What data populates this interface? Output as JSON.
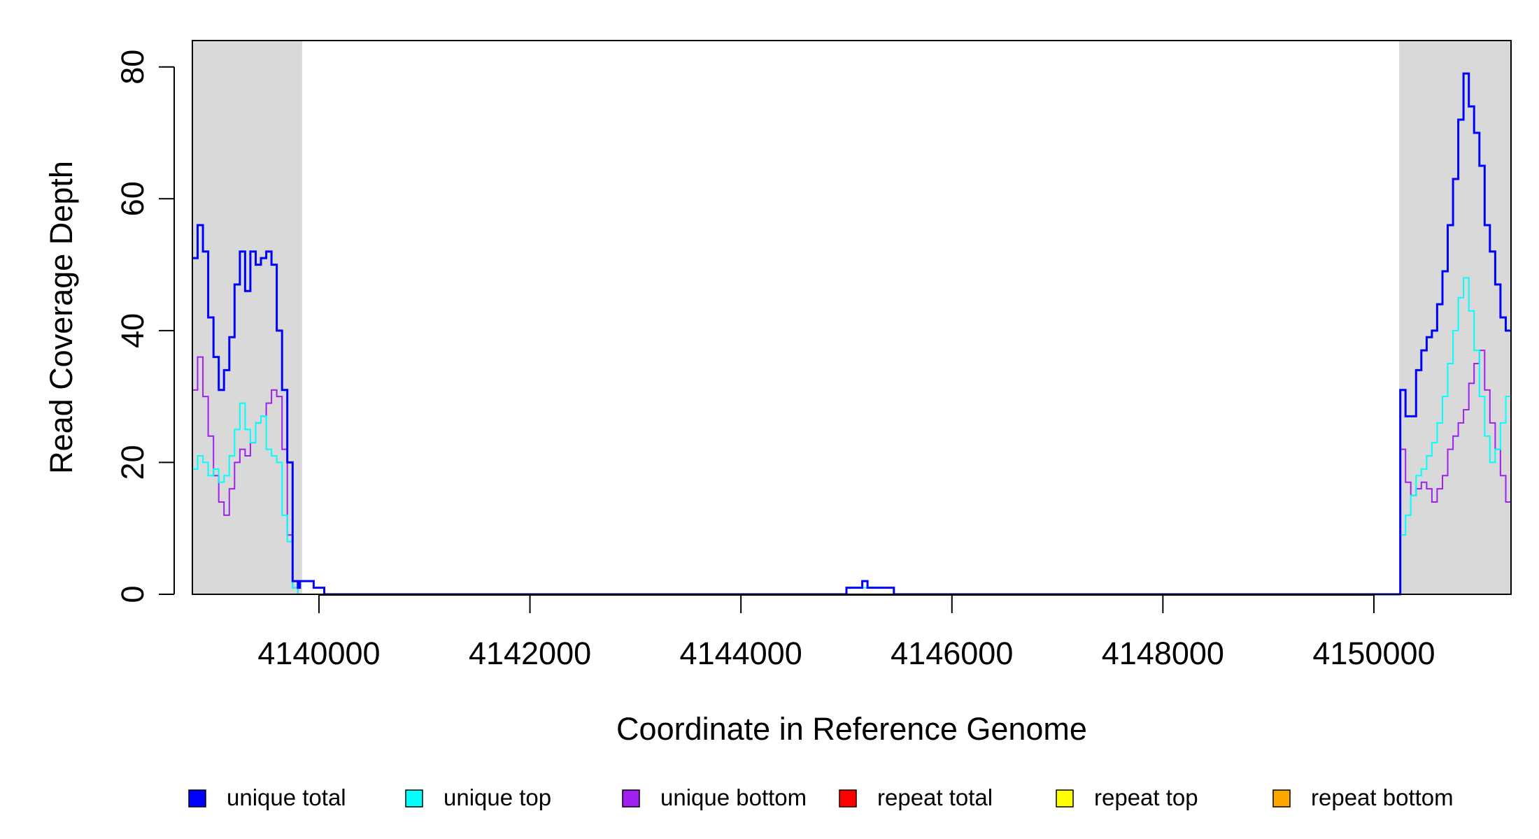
{
  "chart_data": {
    "type": "line",
    "title": "",
    "xlabel": "Coordinate in Reference Genome",
    "ylabel": "Read Coverage Depth",
    "xlim": [
      4138800,
      4151300
    ],
    "ylim": [
      0,
      84
    ],
    "x_ticks": [
      4140000,
      4142000,
      4144000,
      4146000,
      4148000,
      4150000
    ],
    "x_tick_labels": [
      "4140000",
      "4142000",
      "4144000",
      "4146000",
      "4148000",
      "4150000"
    ],
    "y_ticks": [
      0,
      20,
      40,
      60,
      80
    ],
    "y_tick_labels": [
      "0",
      "20",
      "40",
      "60",
      "80"
    ],
    "grid": false,
    "legend_position": "bottom",
    "shaded_regions": [
      {
        "x_start": 4138800,
        "x_end": 4139840,
        "color": "#d9d9d9"
      },
      {
        "x_start": 4150240,
        "x_end": 4151300,
        "color": "#d9d9d9"
      }
    ],
    "legend": [
      {
        "label": "unique total",
        "color": "#0000ff"
      },
      {
        "label": "unique top",
        "color": "#00ffff"
      },
      {
        "label": "unique bottom",
        "color": "#a020f0"
      },
      {
        "label": "repeat total",
        "color": "#ff0000"
      },
      {
        "label": "repeat top",
        "color": "#ffff00"
      },
      {
        "label": "repeat bottom",
        "color": "#ffa500"
      }
    ],
    "series": [
      {
        "name": "unique total",
        "color": "#0000ff",
        "x": [
          4138800,
          4138850,
          4138900,
          4138950,
          4139000,
          4139050,
          4139100,
          4139150,
          4139200,
          4139250,
          4139300,
          4139350,
          4139400,
          4139450,
          4139500,
          4139550,
          4139600,
          4139650,
          4139700,
          4139750,
          4139800,
          4139820,
          4139840,
          4139850,
          4139900,
          4139950,
          4140000,
          4140050,
          4140100,
          4142000,
          4144000,
          4144950,
          4145000,
          4145100,
          4145150,
          4145200,
          4145400,
          4145450,
          4146000,
          4148000,
          4150000,
          4150240,
          4150250,
          4150300,
          4150350,
          4150400,
          4150450,
          4150500,
          4150550,
          4150600,
          4150650,
          4150700,
          4150750,
          4150800,
          4150850,
          4150900,
          4150950,
          4151000,
          4151050,
          4151100,
          4151150,
          4151200,
          4151250,
          4151300
        ],
        "y": [
          51,
          56,
          52,
          42,
          36,
          31,
          34,
          39,
          47,
          52,
          46,
          52,
          50,
          51,
          52,
          50,
          40,
          31,
          20,
          2,
          1,
          2,
          2,
          2,
          2,
          1,
          1,
          0,
          0,
          0,
          0,
          0,
          1,
          1,
          2,
          1,
          1,
          0,
          0,
          0,
          0,
          0,
          31,
          27,
          27,
          34,
          37,
          39,
          40,
          44,
          49,
          56,
          63,
          72,
          79,
          74,
          70,
          65,
          56,
          52,
          47,
          42,
          40,
          40
        ]
      },
      {
        "name": "unique top",
        "color": "#00ffff",
        "x": [
          4138800,
          4138850,
          4138900,
          4138950,
          4139000,
          4139050,
          4139100,
          4139150,
          4139200,
          4139250,
          4139300,
          4139350,
          4139400,
          4139450,
          4139500,
          4139550,
          4139600,
          4139650,
          4139700,
          4139750,
          4139800,
          4139840,
          4139850,
          4140000,
          4142000,
          4144000,
          4144950,
          4145000,
          4145400,
          4145450,
          4146000,
          4148000,
          4150000,
          4150240,
          4150250,
          4150300,
          4150350,
          4150400,
          4150450,
          4150500,
          4150550,
          4150600,
          4150650,
          4150700,
          4150750,
          4150800,
          4150850,
          4150900,
          4150950,
          4151000,
          4151050,
          4151100,
          4151150,
          4151200,
          4151250,
          4151300
        ],
        "y": [
          19,
          21,
          20,
          18,
          19,
          17,
          18,
          21,
          25,
          29,
          25,
          23,
          26,
          27,
          22,
          21,
          20,
          12,
          8,
          1,
          0,
          0,
          0,
          0,
          0,
          0,
          0,
          1,
          1,
          0,
          0,
          0,
          0,
          0,
          9,
          12,
          15,
          18,
          19,
          21,
          23,
          26,
          30,
          35,
          40,
          45,
          48,
          43,
          37,
          30,
          24,
          20,
          22,
          26,
          30,
          32
        ]
      },
      {
        "name": "unique bottom",
        "color": "#a020f0",
        "x": [
          4138800,
          4138850,
          4138900,
          4138950,
          4139000,
          4139050,
          4139100,
          4139150,
          4139200,
          4139250,
          4139300,
          4139350,
          4139400,
          4139450,
          4139500,
          4139550,
          4139600,
          4139650,
          4139700,
          4139750,
          4139800,
          4139840,
          4139850,
          4140000,
          4142000,
          4144000,
          4146000,
          4148000,
          4150000,
          4150240,
          4150250,
          4150300,
          4150350,
          4150400,
          4150450,
          4150500,
          4150550,
          4150600,
          4150650,
          4150700,
          4150750,
          4150800,
          4150850,
          4150900,
          4150950,
          4151000,
          4151050,
          4151100,
          4151150,
          4151200,
          4151250,
          4151300
        ],
        "y": [
          31,
          36,
          30,
          24,
          18,
          14,
          12,
          16,
          20,
          22,
          21,
          23,
          26,
          27,
          29,
          31,
          30,
          22,
          9,
          1,
          0,
          0,
          0,
          0,
          0,
          0,
          0,
          0,
          0,
          0,
          22,
          17,
          15,
          16,
          17,
          16,
          14,
          16,
          18,
          22,
          24,
          26,
          28,
          32,
          35,
          37,
          31,
          26,
          22,
          18,
          14,
          10
        ]
      },
      {
        "name": "repeat total",
        "color": "#ff0000",
        "x": [
          4138800,
          4151300
        ],
        "y": [
          0,
          0
        ]
      },
      {
        "name": "repeat top",
        "color": "#ffff00",
        "x": [
          4138800,
          4151300
        ],
        "y": [
          0,
          0
        ]
      },
      {
        "name": "repeat bottom",
        "color": "#ffa500",
        "x": [
          4138800,
          4151300
        ],
        "y": [
          0,
          0
        ]
      }
    ]
  }
}
